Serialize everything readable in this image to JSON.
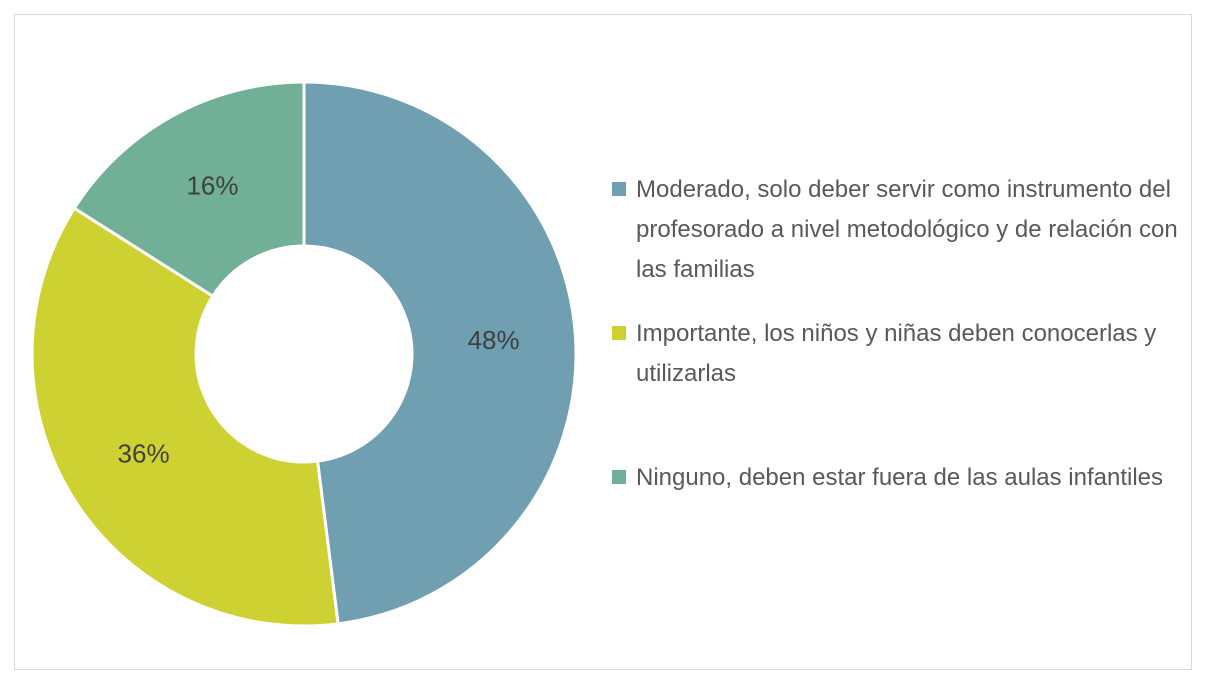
{
  "chart_data": {
    "type": "donut",
    "categories": [
      "Moderado, solo deber servir como instrumento del profesorado a nivel metodológico y de relación con las familias",
      "Importante, los niños y niñas deben conocerlas y utilizarlas",
      "Ninguno, deben estar fuera de las aulas infantiles"
    ],
    "values": [
      48,
      36,
      16
    ],
    "value_labels": [
      "48%",
      "36%",
      "16%"
    ],
    "colors": [
      "#6f9fb0",
      "#cdd232",
      "#71b096"
    ],
    "legend": "right"
  }
}
